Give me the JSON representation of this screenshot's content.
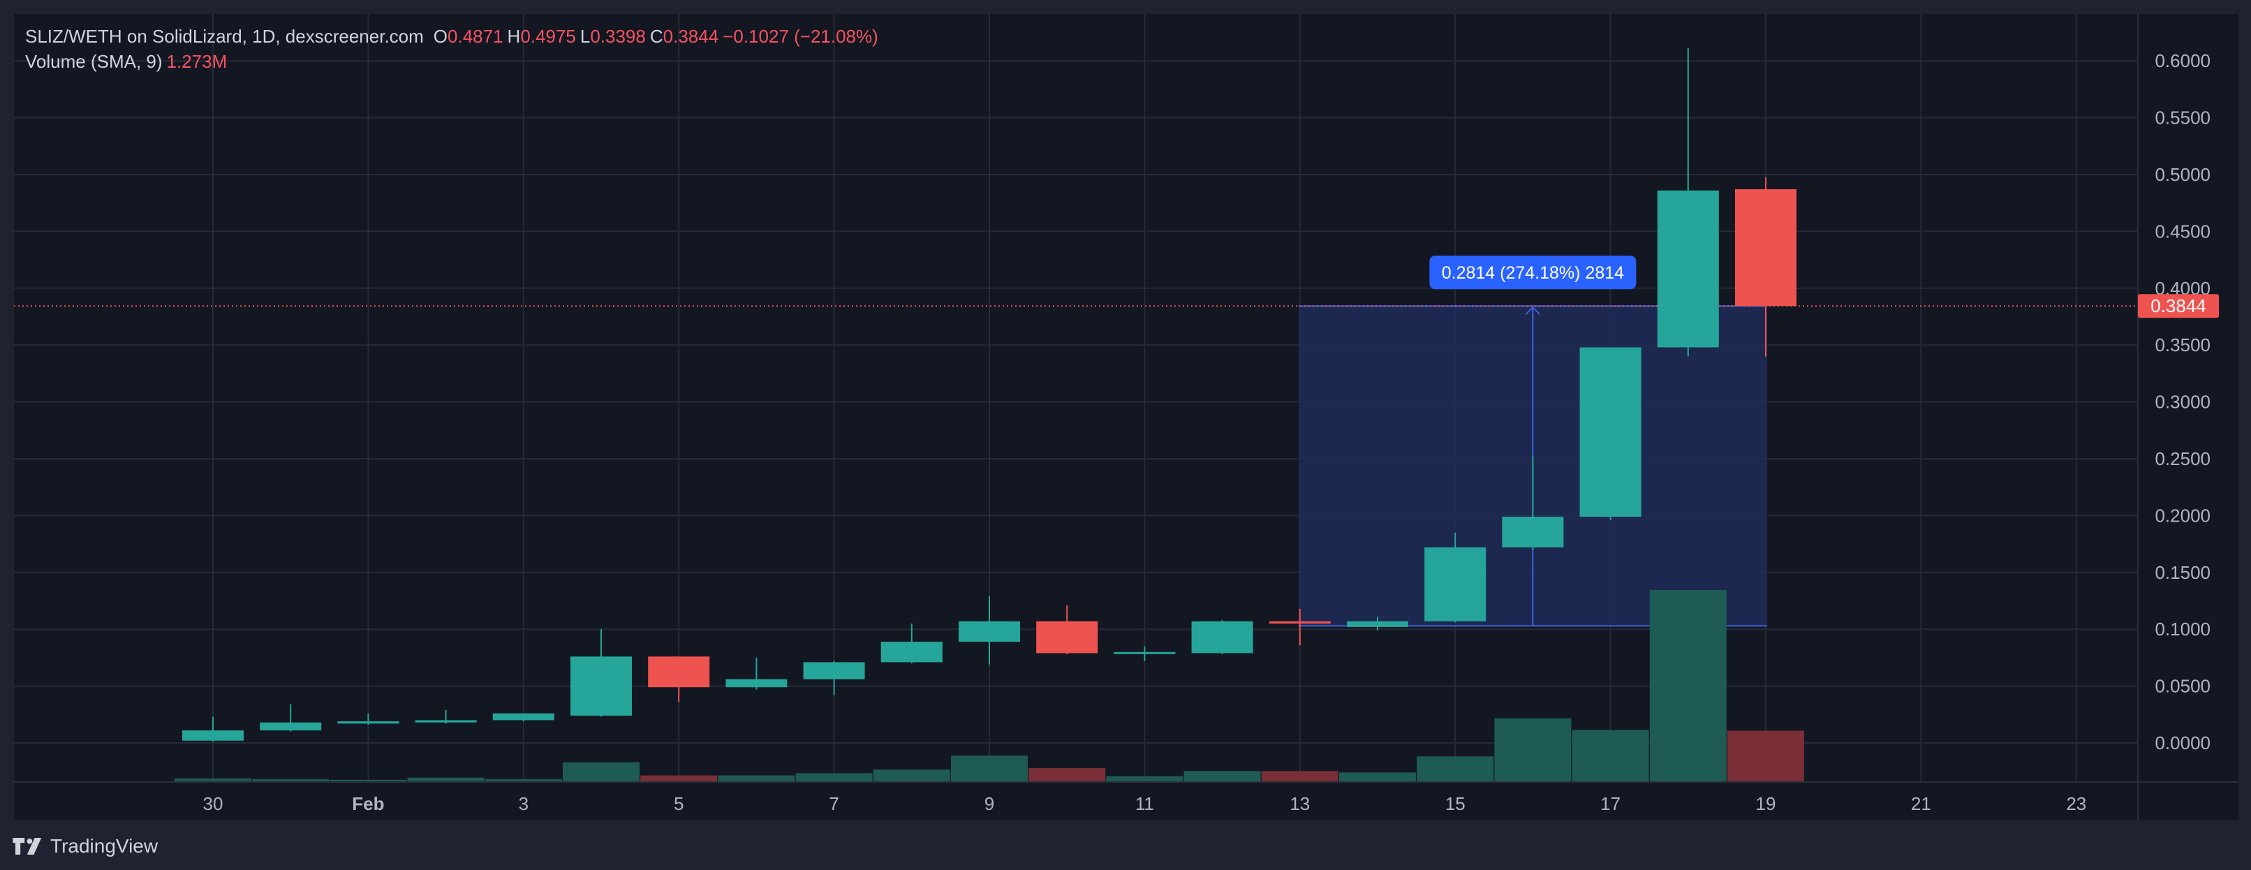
{
  "header": {
    "symbol_line": "SLIZ/WETH on SolidLizard, 1D, dexscreener.com",
    "o_label": "O",
    "o_value": "0.4871",
    "h_label": "H",
    "h_value": "0.4975",
    "l_label": "L",
    "l_value": "0.3398",
    "c_label": "C",
    "c_value": "0.3844",
    "change": "−0.1027 (−21.08%)",
    "volume_label": "Volume (SMA, 9)",
    "volume_value": "1.273M"
  },
  "footer": {
    "brand": "TradingView",
    "logo_icon": "tradingview-logo-icon"
  },
  "colors": {
    "background": "#131722",
    "frame": "#1f2230",
    "grid": "#262b38",
    "up": "#26a69a",
    "down": "#ef5350",
    "volume_up": "#1e5b55",
    "volume_down": "#7a2e36",
    "measure_fill": "#1e2b57",
    "measure_line": "#3d63dd",
    "measure_label_bg": "#2962ff",
    "price_line": "#ef5350",
    "axis_text": "#b2b5be"
  },
  "chart_data": {
    "type": "candlestick",
    "title": "SLIZ/WETH on SolidLizard, 1D, dexscreener.com",
    "timeframe": "1D",
    "x_ticks": [
      "30",
      "Feb",
      "3",
      "5",
      "7",
      "9",
      "11",
      "13",
      "15",
      "17",
      "19",
      "21",
      "23"
    ],
    "y_ticks": [
      "0.0000",
      "0.0500",
      "0.1000",
      "0.1500",
      "0.2000",
      "0.2500",
      "0.3000",
      "0.3500",
      "0.4000",
      "0.4500",
      "0.5000",
      "0.5500",
      "0.6000"
    ],
    "ylim": [
      -0.035,
      0.64
    ],
    "last_price": "0.3844",
    "grid": true,
    "candles": [
      {
        "date": "2023-01-30",
        "open": 0.002,
        "high": 0.023,
        "low": 0.001,
        "close": 0.011,
        "volume": 0.05
      },
      {
        "date": "2023-01-31",
        "open": 0.011,
        "high": 0.034,
        "low": 0.01,
        "close": 0.018,
        "volume": 0.04
      },
      {
        "date": "2023-02-01",
        "open": 0.017,
        "high": 0.026,
        "low": 0.016,
        "close": 0.019,
        "volume": 0.03
      },
      {
        "date": "2023-02-02",
        "open": 0.018,
        "high": 0.029,
        "low": 0.017,
        "close": 0.02,
        "volume": 0.06
      },
      {
        "date": "2023-02-03",
        "open": 0.02,
        "high": 0.026,
        "low": 0.019,
        "close": 0.026,
        "volume": 0.04
      },
      {
        "date": "2023-02-04",
        "open": 0.024,
        "high": 0.1,
        "low": 0.023,
        "close": 0.076,
        "volume": 0.27
      },
      {
        "date": "2023-02-05",
        "open": 0.076,
        "high": 0.076,
        "low": 0.036,
        "close": 0.049,
        "volume": 0.09
      },
      {
        "date": "2023-02-06",
        "open": 0.049,
        "high": 0.075,
        "low": 0.047,
        "close": 0.056,
        "volume": 0.09
      },
      {
        "date": "2023-02-07",
        "open": 0.056,
        "high": 0.072,
        "low": 0.042,
        "close": 0.071,
        "volume": 0.12
      },
      {
        "date": "2023-02-08",
        "open": 0.071,
        "high": 0.105,
        "low": 0.07,
        "close": 0.089,
        "volume": 0.17
      },
      {
        "date": "2023-02-09",
        "open": 0.089,
        "high": 0.129,
        "low": 0.069,
        "close": 0.107,
        "volume": 0.36
      },
      {
        "date": "2023-02-10",
        "open": 0.107,
        "high": 0.121,
        "low": 0.078,
        "close": 0.079,
        "volume": 0.19
      },
      {
        "date": "2023-02-11",
        "open": 0.079,
        "high": 0.085,
        "low": 0.072,
        "close": 0.08,
        "volume": 0.08
      },
      {
        "date": "2023-02-12",
        "open": 0.079,
        "high": 0.108,
        "low": 0.078,
        "close": 0.107,
        "volume": 0.15
      },
      {
        "date": "2023-02-13",
        "open": 0.107,
        "high": 0.118,
        "low": 0.086,
        "close": 0.105,
        "volume": 0.15
      },
      {
        "date": "2023-02-14",
        "open": 0.102,
        "high": 0.111,
        "low": 0.099,
        "close": 0.107,
        "volume": 0.13
      },
      {
        "date": "2023-02-15",
        "open": 0.107,
        "high": 0.185,
        "low": 0.106,
        "close": 0.172,
        "volume": 0.35
      },
      {
        "date": "2023-02-16",
        "open": 0.172,
        "high": 0.252,
        "low": 0.17,
        "close": 0.199,
        "volume": 0.87
      },
      {
        "date": "2023-02-17",
        "open": 0.199,
        "high": 0.348,
        "low": 0.196,
        "close": 0.348,
        "volume": 0.71
      },
      {
        "date": "2023-02-18",
        "open": 0.348,
        "high": 0.611,
        "low": 0.34,
        "close": 0.486,
        "volume": 2.62
      },
      {
        "date": "2023-02-19",
        "open": 0.4871,
        "high": 0.4975,
        "low": 0.3398,
        "close": 0.3844,
        "volume": 0.7
      }
    ],
    "measure": {
      "label": "0.2814 (274.18%) 2814",
      "from_date": "2023-02-13",
      "to_date": "2023-02-19",
      "from_price": 0.103,
      "to_price": 0.3844
    }
  }
}
